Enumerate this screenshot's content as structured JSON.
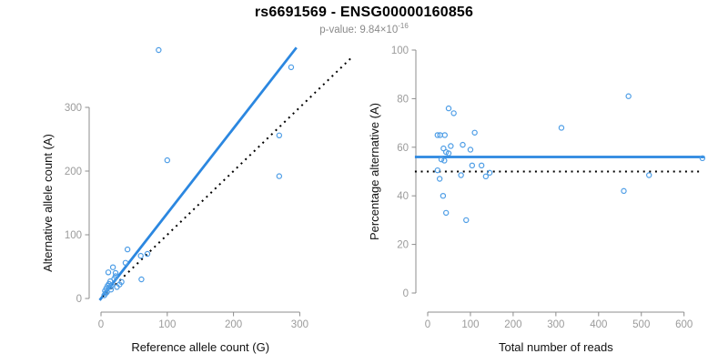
{
  "header": {
    "title": "rs6691569 - ENSG00000160856",
    "subtitle_prefix": "p-value: 9.84×10",
    "subtitle_exponent": "-16"
  },
  "colors": {
    "regression_line": "#2b87e0",
    "point_stroke": "#4d9de6",
    "reference_line": "#000000",
    "axis_line": "#8c8c8c",
    "tick_label": "#9b9b9b",
    "axis_title": "#111111",
    "subtitle_text": "#8a8a8a",
    "title_text": "#000000"
  },
  "chart_data": [
    {
      "type": "scatter",
      "name": "allele-count-scatter",
      "xlabel": "Reference allele count (G)",
      "ylabel": "Alternative allele count (A)",
      "xlim": [
        0,
        300
      ],
      "ylim": [
        0,
        300
      ],
      "xticks": [
        0,
        100,
        200,
        300
      ],
      "yticks": [
        0,
        100,
        200,
        300
      ],
      "grid": false,
      "legend": "none",
      "points": [
        [
          87,
          390
        ],
        [
          287,
          363
        ],
        [
          269,
          256
        ],
        [
          269,
          192
        ],
        [
          100,
          217
        ],
        [
          40,
          77
        ],
        [
          60,
          67
        ],
        [
          70,
          70
        ],
        [
          37,
          56
        ],
        [
          18,
          49
        ],
        [
          11,
          41
        ],
        [
          22,
          35
        ],
        [
          61,
          30
        ],
        [
          22,
          40
        ],
        [
          20,
          31
        ],
        [
          24,
          18
        ],
        [
          12,
          23
        ],
        [
          10,
          20
        ],
        [
          14,
          27
        ],
        [
          8,
          16
        ],
        [
          6,
          12
        ],
        [
          9,
          10
        ],
        [
          15,
          14
        ],
        [
          13,
          18
        ],
        [
          7,
          8
        ],
        [
          28,
          22
        ],
        [
          31,
          26
        ],
        [
          5,
          5
        ],
        [
          16,
          21
        ]
      ],
      "lines": [
        {
          "style": "solid",
          "role": "regression-line",
          "slope": 1.335,
          "intercept": 0,
          "x_range": [
            -2,
            295
          ]
        },
        {
          "style": "dotted",
          "role": "identity-line",
          "slope": 1,
          "intercept": 0,
          "x_range": [
            2,
            380
          ]
        }
      ]
    },
    {
      "type": "scatter",
      "name": "percentage-vs-reads-scatter",
      "xlabel": "Total number of reads",
      "ylabel": "Percentage alternative (A)",
      "xlim": [
        0,
        600
      ],
      "ylim": [
        0,
        100
      ],
      "xticks": [
        0,
        100,
        200,
        300,
        400,
        500,
        600
      ],
      "yticks": [
        0,
        20,
        40,
        60,
        80,
        100
      ],
      "grid": false,
      "legend": "none",
      "points": [
        [
          49,
          76
        ],
        [
          61,
          74
        ],
        [
          470,
          81
        ],
        [
          23,
          65
        ],
        [
          29,
          65
        ],
        [
          40,
          65
        ],
        [
          110,
          66
        ],
        [
          313,
          68
        ],
        [
          82,
          61
        ],
        [
          54,
          60.5
        ],
        [
          37,
          59.5
        ],
        [
          100,
          59
        ],
        [
          43,
          58
        ],
        [
          49,
          57.5
        ],
        [
          32,
          55
        ],
        [
          39,
          54.5
        ],
        [
          104,
          52.5
        ],
        [
          126,
          52.5
        ],
        [
          23,
          50.5
        ],
        [
          28,
          47
        ],
        [
          78,
          48.5
        ],
        [
          136,
          48
        ],
        [
          145,
          49.5
        ],
        [
          518,
          48.5
        ],
        [
          643,
          55.5
        ],
        [
          36,
          40
        ],
        [
          459,
          42
        ],
        [
          43,
          33
        ],
        [
          90,
          30
        ]
      ],
      "lines": [
        {
          "style": "solid",
          "role": "mean-percentage-line",
          "y": 56,
          "x_range": [
            -30,
            648
          ]
        },
        {
          "style": "dotted",
          "role": "expected-50-line",
          "y": 50,
          "x_range": [
            -30,
            637
          ]
        }
      ]
    }
  ]
}
